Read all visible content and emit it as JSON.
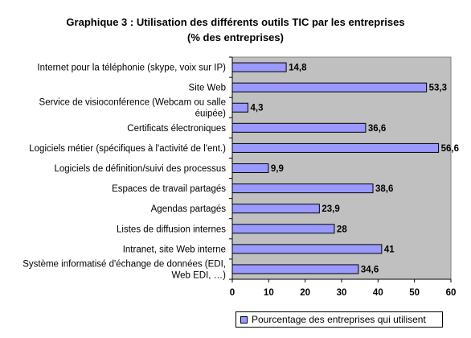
{
  "chart_data": {
    "type": "bar",
    "orientation": "horizontal",
    "title": "Graphique 3 : Utilisation des différents outils TIC par les entreprises",
    "subtitle": "(% des entreprises)",
    "categories": [
      "Internet pour la téléphonie (skype, voix sur IP)",
      "Site Web",
      "Service de visioconférence (Webcam ou salle équipée)",
      "Certificats électroniques",
      "Logiciels métier (spécifiques à l'activité de l'ent.)",
      "Logiciels de définition/suivi des processus",
      "Espaces de travail partagés",
      "Agendas partagés",
      "Listes de diffusion internes",
      "Intranet, site Web interne",
      "Système informatisé d'échange de données (EDI, Web EDI, …)"
    ],
    "category_label_lines": [
      [
        "Internet pour la téléphonie (skype, voix sur IP)"
      ],
      [
        "Site Web"
      ],
      [
        "Service de visioconférence (Webcam ou salle",
        "éuipée)"
      ],
      [
        "Certificats électroniques"
      ],
      [
        "Logiciels métier (spécifiques à l'activité de l'ent.)"
      ],
      [
        "Logiciels de définition/suivi des processus"
      ],
      [
        "Espaces de travail partagés"
      ],
      [
        "Agendas partagés"
      ],
      [
        "Listes de diffusion internes"
      ],
      [
        "Intranet, site Web interne"
      ],
      [
        "Système informatisé d'échange de données (EDI,",
        "Web EDI, …)"
      ]
    ],
    "series": [
      {
        "name": "Pourcentage des entreprises qui utilisent",
        "values": [
          14.8,
          53.3,
          4.3,
          36.6,
          56.6,
          9.9,
          38.6,
          23.9,
          28,
          41,
          34.6
        ],
        "value_labels": [
          "14,8",
          "53,3",
          "4,3",
          "36,6",
          "56,6",
          "9,9",
          "38,6",
          "23,9",
          "28",
          "41",
          "34,6"
        ]
      }
    ],
    "xlim": [
      0,
      60
    ],
    "xticks": [
      0,
      10,
      20,
      30,
      40,
      50,
      60
    ],
    "grid": false,
    "legend_position": "bottom-right",
    "colors": {
      "bar_fill": "#9999ff",
      "bar_stroke": "#000000",
      "plot_background": "#c0c0c0"
    }
  }
}
